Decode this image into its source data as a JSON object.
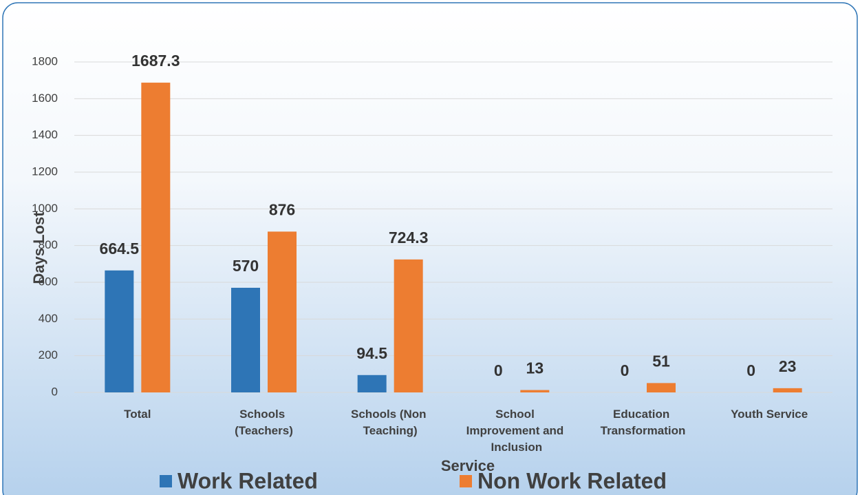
{
  "chart_data": {
    "type": "bar",
    "x_label": "Service",
    "y_label": "Days Lost",
    "categories": [
      "Total",
      "Schools (Teachers)",
      "Schools (Non Teaching)",
      "School Improvement and Inclusion",
      "Education Transformation",
      "Youth Service"
    ],
    "series": [
      {
        "name": "Work Related",
        "color": "#2e75b6",
        "values": [
          664.5,
          570,
          94.5,
          0,
          0,
          0
        ]
      },
      {
        "name": "Non Work Related",
        "color": "#ed7d31",
        "values": [
          1687.3,
          876,
          724.3,
          13,
          51,
          23
        ]
      }
    ],
    "ylim": [
      0,
      1800
    ],
    "yticks": [
      0,
      200,
      400,
      600,
      800,
      1000,
      1200,
      1400,
      1600,
      1800
    ],
    "grid": true
  }
}
